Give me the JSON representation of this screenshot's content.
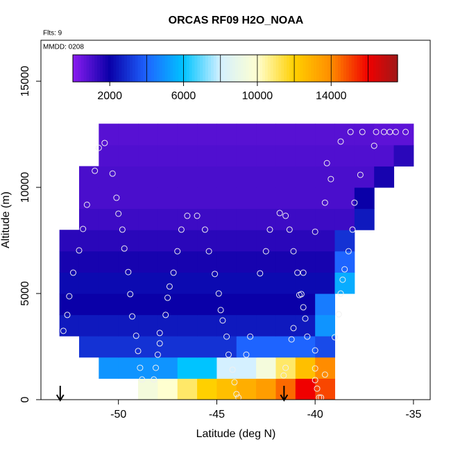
{
  "chart_data": {
    "type": "heatmap",
    "title": "ORCAS RF09 H2O_NOAA",
    "subtitle": "Flts: 9",
    "annotation": "MMDD: 0208",
    "x_label": "Latitude (deg N)",
    "y_label": "Altitude (m)",
    "xlim": [
      -53.94,
      -34.15
    ],
    "ylim": [
      0,
      16930
    ],
    "xticks": [
      -50,
      -45,
      -40,
      -35
    ],
    "yticks": [
      0,
      5000,
      10000,
      15000
    ],
    "clim": [
      0,
      17600
    ],
    "cticks": [
      2000,
      6000,
      10000,
      14000
    ],
    "colorbar_lines": [
      4000,
      6000,
      8000,
      10000,
      12000,
      14000,
      16000
    ],
    "colorscale": [
      [
        0,
        "#8a1cf0"
      ],
      [
        2000,
        "#0a00a8"
      ],
      [
        4000,
        "#1e64ff"
      ],
      [
        6000,
        "#00c4ff"
      ],
      [
        8000,
        "#d4f0ff"
      ],
      [
        10000,
        "#ffffd0"
      ],
      [
        12000,
        "#ffd000"
      ],
      [
        14000,
        "#ff8c00"
      ],
      [
        16000,
        "#f00000"
      ],
      [
        17600,
        "#a01818"
      ]
    ],
    "x_edges": [
      -54,
      -53,
      -52,
      -51,
      -50,
      -49,
      -48,
      -47,
      -46,
      -45,
      -44,
      -43,
      -42,
      -41,
      -40,
      -39,
      -38,
      -37,
      -36,
      -35,
      -34
    ],
    "y_edges": [
      0,
      1000,
      2000,
      3000,
      4000,
      5000,
      6000,
      7000,
      8000,
      9000,
      10000,
      11000,
      12000,
      13000
    ],
    "z": [
      [
        null,
        null,
        null,
        null,
        null,
        9500,
        10000,
        11000,
        12000,
        12500,
        13000,
        13500,
        14500,
        16000,
        15000,
        null,
        null,
        null,
        null,
        null
      ],
      [
        null,
        null,
        null,
        5000,
        5000,
        5000,
        5000,
        6000,
        6000,
        8000,
        8000,
        9500,
        11000,
        12500,
        14000,
        null,
        null,
        null,
        null,
        null
      ],
      [
        null,
        null,
        3000,
        3000,
        3000,
        3000,
        3000,
        3000,
        3000,
        3000,
        4000,
        4000,
        4000,
        4000,
        3500,
        null,
        null,
        null,
        null,
        null
      ],
      [
        null,
        2500,
        2500,
        2500,
        2500,
        2500,
        2500,
        2500,
        2500,
        2500,
        2500,
        2500,
        2500,
        2500,
        5000,
        null,
        null,
        null,
        null,
        null
      ],
      [
        null,
        2000,
        2000,
        2000,
        2000,
        2000,
        2000,
        2000,
        2000,
        2000,
        2000,
        2000,
        2000,
        2000,
        4500,
        null,
        null,
        null,
        null,
        null
      ],
      [
        null,
        2200,
        2200,
        2200,
        2200,
        2200,
        2200,
        2200,
        2200,
        2200,
        2200,
        2200,
        2200,
        2200,
        2200,
        5500,
        null,
        null,
        null,
        null
      ],
      [
        null,
        1800,
        1800,
        1800,
        1800,
        1800,
        1800,
        1800,
        1800,
        1800,
        1800,
        1800,
        1800,
        1800,
        1800,
        4000,
        null,
        null,
        null,
        null
      ],
      [
        null,
        1500,
        1500,
        1500,
        1500,
        1500,
        1500,
        1500,
        1500,
        1500,
        1500,
        1500,
        1500,
        1500,
        1500,
        3000,
        null,
        null,
        null,
        null
      ],
      [
        null,
        null,
        1200,
        1200,
        1200,
        1200,
        1200,
        1200,
        1200,
        1200,
        1200,
        1200,
        1200,
        1200,
        1200,
        1200,
        2500,
        null,
        null,
        null
      ],
      [
        null,
        null,
        1000,
        1000,
        1000,
        1000,
        1000,
        1000,
        1000,
        1000,
        1000,
        1000,
        1000,
        1000,
        1000,
        1000,
        2000,
        null,
        null,
        null
      ],
      [
        null,
        null,
        1000,
        1000,
        1000,
        1000,
        1000,
        1000,
        1000,
        1000,
        1000,
        1000,
        1000,
        1000,
        1000,
        1000,
        1000,
        1800,
        null,
        null
      ],
      [
        null,
        null,
        null,
        900,
        900,
        900,
        900,
        900,
        900,
        900,
        900,
        900,
        900,
        900,
        900,
        900,
        900,
        900,
        1500,
        null
      ],
      [
        null,
        null,
        null,
        800,
        800,
        800,
        800,
        800,
        800,
        800,
        800,
        800,
        800,
        800,
        800,
        800,
        800,
        700,
        700,
        null
      ]
    ],
    "points": {
      "x": [
        -50.7,
        -51.0,
        -51.2,
        -50.3,
        -51.6,
        -50.1,
        -50.0,
        -51.8,
        -49.8,
        -52.0,
        -49.7,
        -52.3,
        -49.5,
        -52.5,
        -49.4,
        -52.6,
        -49.3,
        -52.8,
        -49.1,
        -47.9,
        -47.9,
        -49.0,
        -48.0,
        -48.9,
        -48.1,
        -48.8,
        -48.2,
        -46.5,
        -46.0,
        -46.8,
        -45.6,
        -47.0,
        -45.4,
        -47.2,
        -45.1,
        -47.4,
        -47.5,
        -47.6,
        -44.9,
        -44.8,
        -44.7,
        -44.5,
        -44.4,
        -44.2,
        -44.1,
        -44.0,
        -43.9,
        -41.8,
        -41.5,
        -42.3,
        -41.3,
        -42.5,
        -41.1,
        -42.8,
        -40.9,
        -40.6,
        -40.8,
        -40.7,
        -40.6,
        -40.5,
        -41.1,
        -41.2,
        -40.4,
        -43.5,
        -43.3,
        -41.5,
        -41.6,
        -40.0,
        -40.0,
        -40.0,
        -39.9,
        -39.8,
        -39.7,
        -39.5,
        -39.5,
        -39.4,
        -39.2,
        -38.7,
        -37.7,
        -38.0,
        -38.1,
        -38.3,
        -38.5,
        -38.6,
        -38.7,
        -38.8,
        -39.0,
        -40.0,
        -38.2,
        -37.6,
        -37.0,
        -36.9,
        -36.5,
        -36.2,
        -35.9,
        -35.4
      ],
      "y": [
        12090,
        11860,
        10780,
        10650,
        9180,
        9510,
        8760,
        8040,
        8010,
        7030,
        7120,
        5980,
        6010,
        4870,
        4970,
        3990,
        3920,
        3240,
        3010,
        3140,
        2650,
        2290,
        2120,
        1500,
        1500,
        950,
        950,
        8660,
        8660,
        8010,
        8010,
        6990,
        6990,
        5980,
        5920,
        5330,
        4800,
        3990,
        5000,
        4220,
        3730,
        2970,
        2120,
        1410,
        820,
        260,
        100,
        8790,
        8660,
        8010,
        8010,
        6990,
        6990,
        5950,
        5980,
        5980,
        4930,
        4970,
        4350,
        3820,
        3370,
        2840,
        2970,
        2120,
        2970,
        1500,
        1140,
        2320,
        1470,
        920,
        520,
        100,
        100,
        1180,
        9280,
        11140,
        10390,
        12160,
        10590,
        9280,
        8010,
        6990,
        6140,
        5650,
        5000,
        4020,
        2940,
        7910,
        12610,
        12610,
        11960,
        12610,
        12610,
        12610,
        12610,
        12610
      ]
    },
    "arrows_x": [
      -52.96,
      -41.58
    ]
  }
}
